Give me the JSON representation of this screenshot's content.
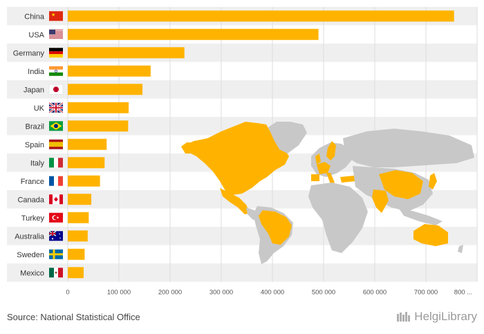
{
  "chart_data": {
    "type": "bar",
    "orientation": "horizontal",
    "categories": [
      "China",
      "USA",
      "Germany",
      "India",
      "Japan",
      "UK",
      "Brazil",
      "Spain",
      "Italy",
      "France",
      "Canada",
      "Turkey",
      "Australia",
      "Sweden",
      "Mexico"
    ],
    "values": [
      755000,
      490000,
      228000,
      162000,
      146000,
      119000,
      118000,
      76000,
      72000,
      63000,
      46000,
      41000,
      39000,
      33000,
      31000
    ],
    "xticks": [
      "0",
      "100 000",
      "200 000",
      "300 000",
      "400 000",
      "500 000",
      "600 000",
      "700 000",
      "800 ..."
    ],
    "xlim": [
      0,
      800000
    ],
    "grid": true,
    "bar_color": "#FFB300"
  },
  "source": "Source: National Statistical Office",
  "brand": "HelgiLibrary",
  "colors": {
    "bar": "#FFB300",
    "band": "#EFEFEF",
    "map_land": "#C8C8C8",
    "map_highlight": "#FFB300",
    "grid": "#DCDCDC"
  }
}
